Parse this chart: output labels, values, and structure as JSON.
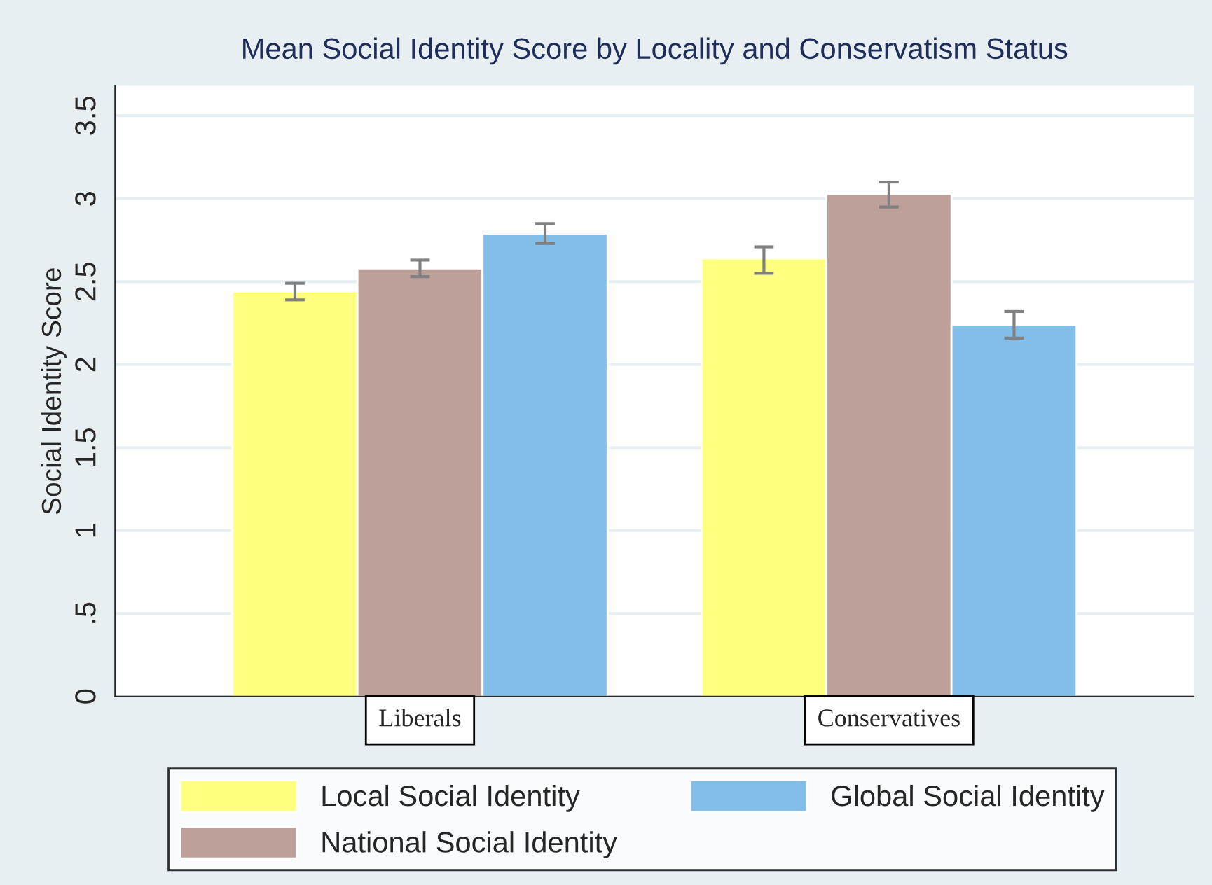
{
  "chart_data": {
    "type": "bar",
    "title": "Mean Social Identity Score by Locality and Conservatism Status",
    "ylabel": "Social Identity Score",
    "categories": [
      "Liberals",
      "Conservatives"
    ],
    "series": [
      {
        "name": "Local Social Identity",
        "color": "#ffff80",
        "values": [
          2.44,
          2.64
        ],
        "errors": [
          [
            2.39,
            2.49
          ],
          [
            2.55,
            2.71
          ]
        ]
      },
      {
        "name": "National Social Identity",
        "color": "#bea09a",
        "values": [
          2.58,
          3.03
        ],
        "errors": [
          [
            2.53,
            2.63
          ],
          [
            2.95,
            3.1
          ]
        ]
      },
      {
        "name": "Global Social Identity",
        "color": "#82bee8",
        "values": [
          2.79,
          2.24
        ],
        "errors": [
          [
            2.73,
            2.85
          ],
          [
            2.16,
            2.32
          ]
        ]
      }
    ],
    "ylim": [
      0,
      3.68
    ],
    "yticks": [
      0,
      {
        "value": 0.5,
        "label": ".5"
      },
      1,
      1.5,
      2,
      2.5,
      3,
      3.5
    ],
    "grid": "y",
    "legend": "bottom"
  }
}
